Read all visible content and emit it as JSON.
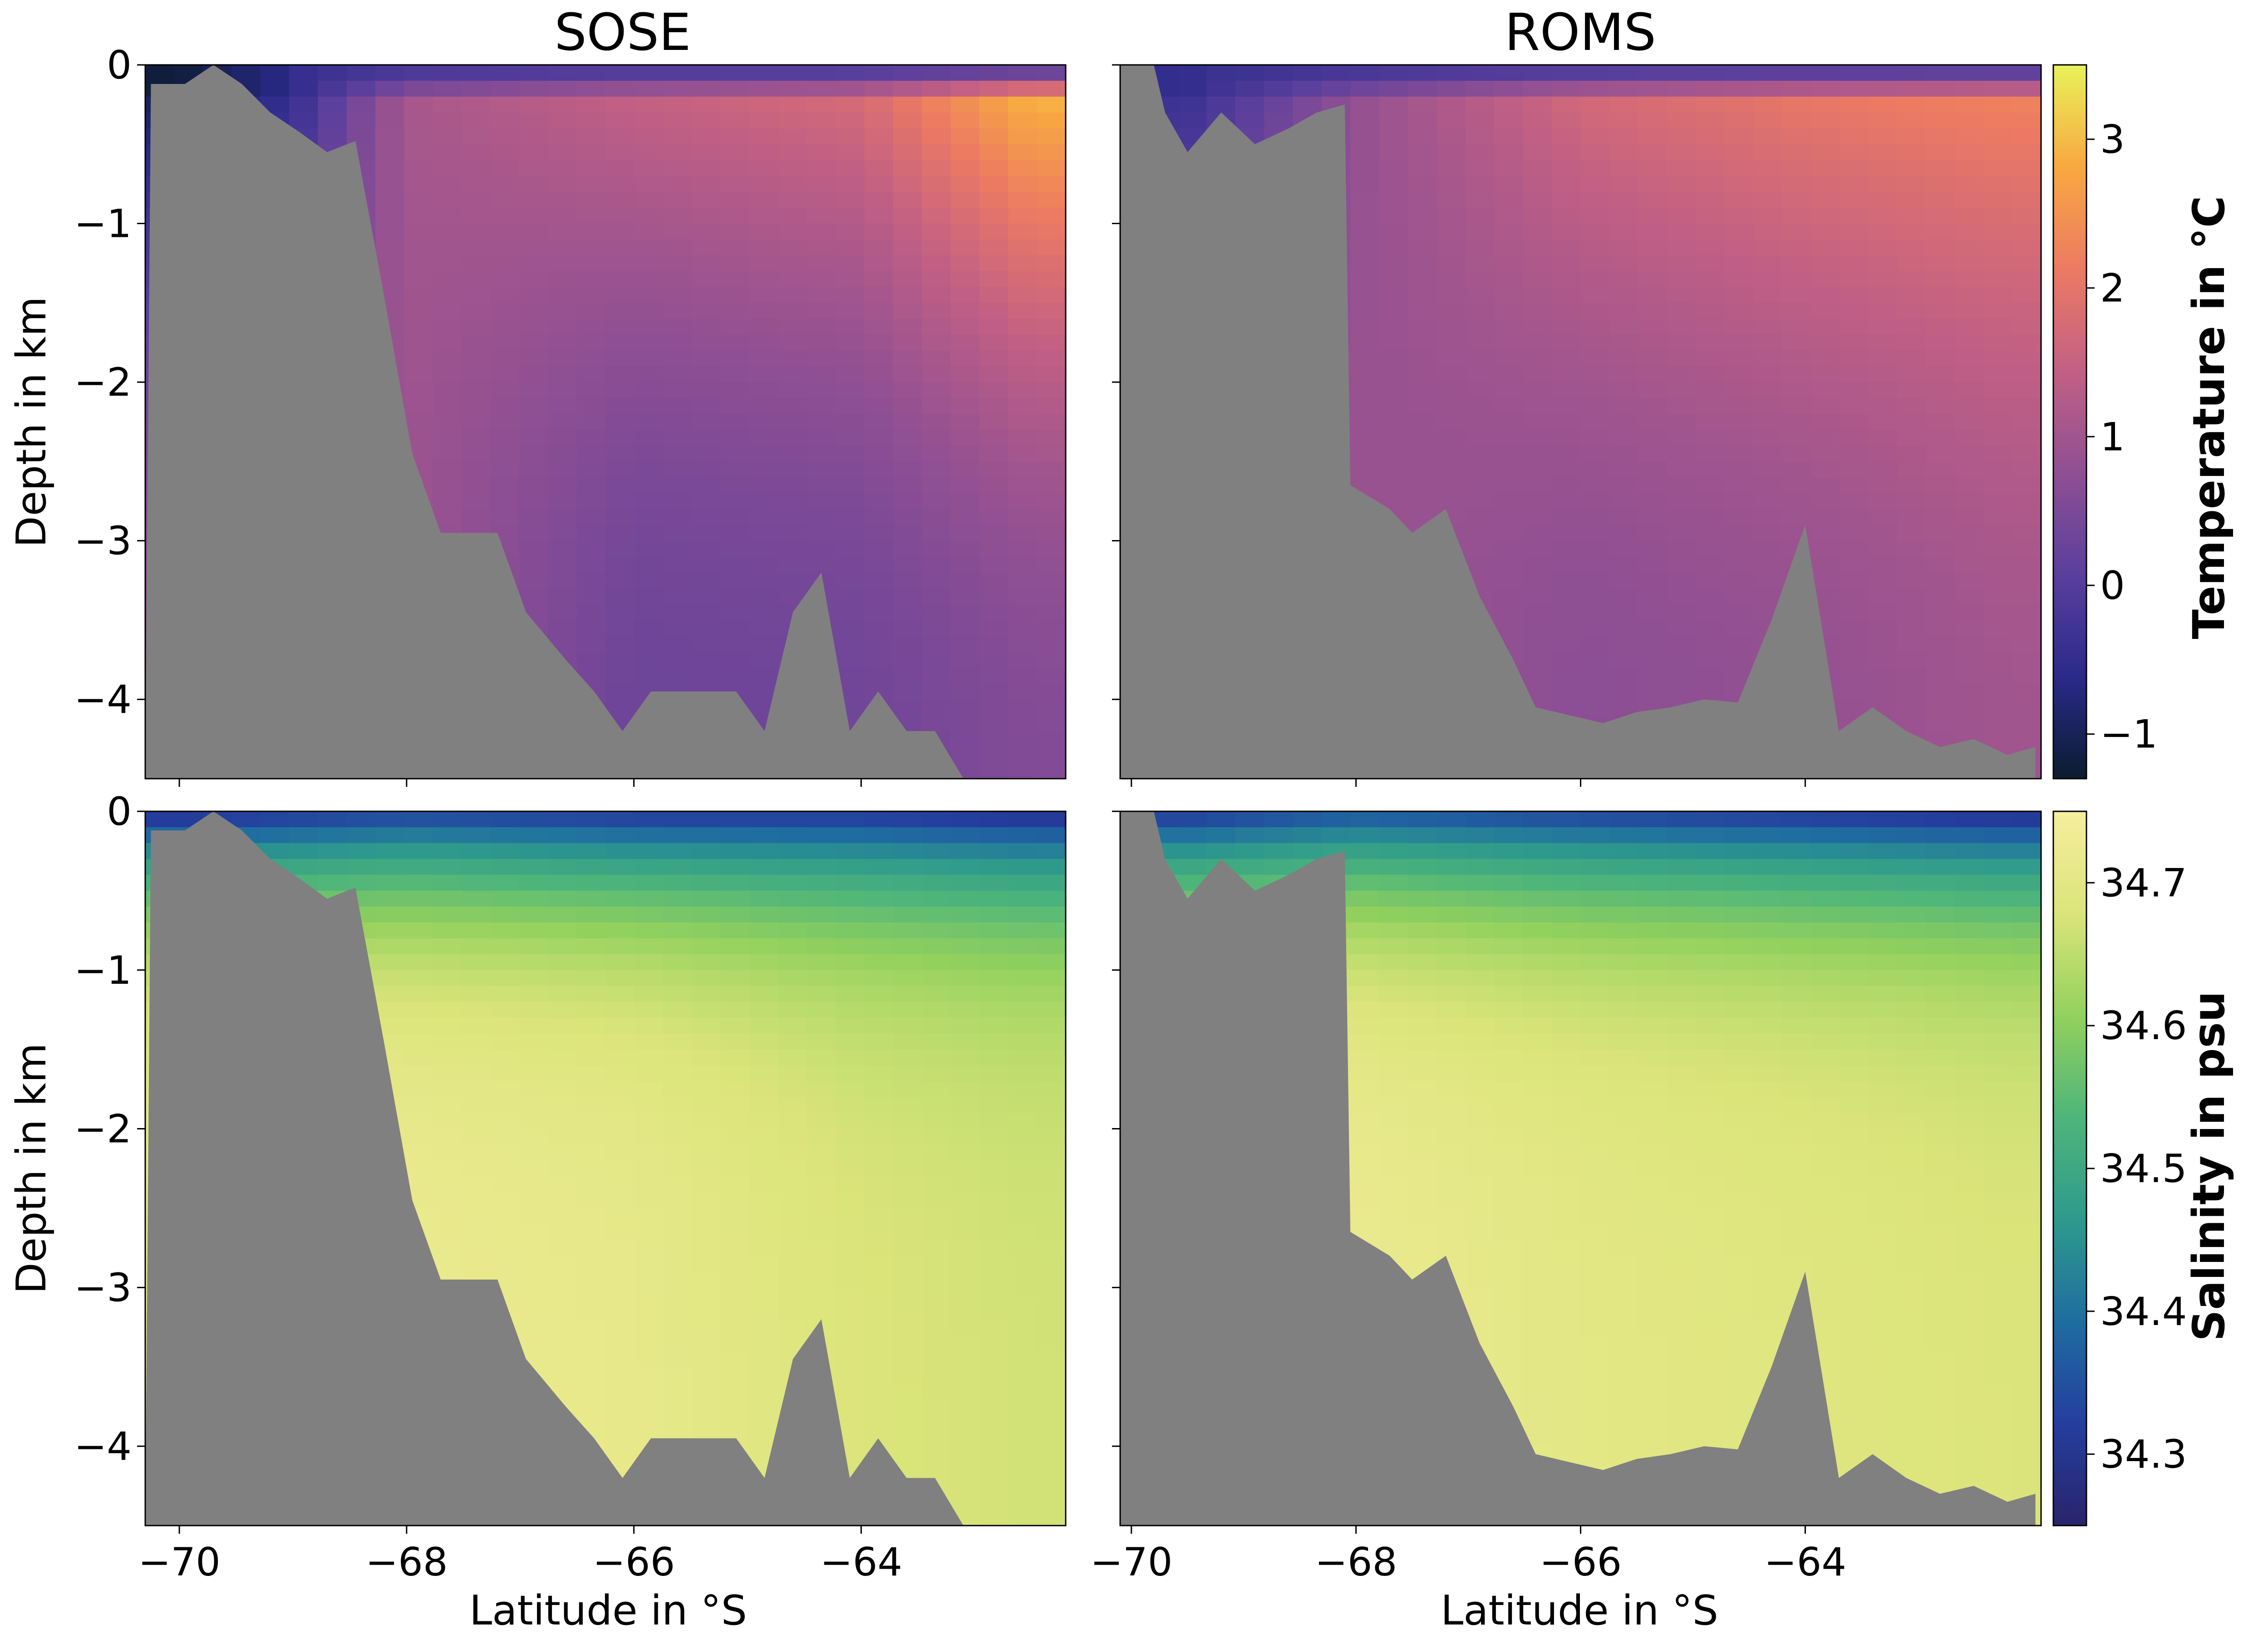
{
  "colors": {
    "land": "#808080",
    "temperature_colormap": [
      "#0b1c2f",
      "#2a2a8a",
      "#5a3f9d",
      "#8f4f93",
      "#c26084",
      "#ec7a63",
      "#f8a841",
      "#e8f25a"
    ],
    "salinity_colormap": [
      "#29246b",
      "#243e9e",
      "#1f6da0",
      "#2e9a8c",
      "#4eb57a",
      "#93d15d",
      "#dbe47a",
      "#f6ee9e"
    ]
  },
  "chart_data": [
    {
      "type": "heatmap",
      "panel": "top-left",
      "title": "SOSE",
      "xlabel": "",
      "ylabel": "Depth in km",
      "variable": "Temperature in °C",
      "xlim": [
        -70.3,
        -62.2
      ],
      "ylim": [
        -4.5,
        0
      ],
      "yticks": [
        0,
        -1,
        -2,
        -3,
        -4
      ],
      "ytick_labels": [
        "0",
        "−1",
        "−2",
        "−3",
        "−4"
      ],
      "bottom_depth_km": [
        [
          -70.25,
          -0.12
        ],
        [
          -69.95,
          -0.12
        ],
        [
          -69.7,
          0
        ],
        [
          -69.45,
          -0.12
        ],
        [
          -69.2,
          -0.3
        ],
        [
          -68.95,
          -0.42
        ],
        [
          -68.7,
          -0.55
        ],
        [
          -68.45,
          -0.48
        ],
        [
          -68.2,
          -1.45
        ],
        [
          -67.95,
          -2.45
        ],
        [
          -67.7,
          -2.95
        ],
        [
          -67.2,
          -2.95
        ],
        [
          -66.95,
          -3.45
        ],
        [
          -66.6,
          -3.75
        ],
        [
          -66.35,
          -3.95
        ],
        [
          -66.1,
          -4.2
        ],
        [
          -65.85,
          -3.95
        ],
        [
          -65.1,
          -3.95
        ],
        [
          -64.85,
          -4.2
        ],
        [
          -64.6,
          -3.45
        ],
        [
          -64.35,
          -3.2
        ],
        [
          -64.1,
          -4.2
        ],
        [
          -63.85,
          -3.95
        ],
        [
          -63.6,
          -4.2
        ],
        [
          -63.35,
          -4.2
        ],
        [
          -63.1,
          -4.5
        ],
        [
          -62.25,
          -4.5
        ]
      ],
      "surface_temperature_C": [
        [
          -70,
          -1.2
        ],
        [
          -69,
          -0.6
        ],
        [
          -68,
          1.1
        ],
        [
          -66,
          1.6
        ],
        [
          -64,
          1.9
        ],
        [
          -62.5,
          3.2
        ]
      ],
      "deep_temperature_C": [
        [
          -68,
          0.9
        ],
        [
          -66,
          0.3
        ],
        [
          -64,
          0.35
        ],
        [
          -62.5,
          0.6
        ]
      ]
    },
    {
      "type": "heatmap",
      "panel": "top-right",
      "title": "ROMS",
      "xlabel": "",
      "ylabel": "",
      "variable": "Temperature in °C",
      "xlim": [
        -70.1,
        -61.9
      ],
      "ylim": [
        -4.5,
        0
      ],
      "bottom_depth_km": [
        [
          -70.1,
          0
        ],
        [
          -69.8,
          0
        ],
        [
          -69.7,
          -0.3
        ],
        [
          -69.5,
          -0.55
        ],
        [
          -69.2,
          -0.3
        ],
        [
          -68.9,
          -0.5
        ],
        [
          -68.6,
          -0.4
        ],
        [
          -68.35,
          -0.3
        ],
        [
          -68.1,
          -0.25
        ],
        [
          -68.05,
          -2.65
        ],
        [
          -67.7,
          -2.8
        ],
        [
          -67.5,
          -2.95
        ],
        [
          -67.2,
          -2.8
        ],
        [
          -66.9,
          -3.35
        ],
        [
          -66.6,
          -3.75
        ],
        [
          -66.4,
          -4.05
        ],
        [
          -66.1,
          -4.1
        ],
        [
          -65.8,
          -4.15
        ],
        [
          -65.5,
          -4.08
        ],
        [
          -65.2,
          -4.05
        ],
        [
          -64.9,
          -4.0
        ],
        [
          -64.6,
          -4.02
        ],
        [
          -64.3,
          -3.5
        ],
        [
          -64.0,
          -2.9
        ],
        [
          -63.7,
          -4.2
        ],
        [
          -63.4,
          -4.05
        ],
        [
          -63.1,
          -4.2
        ],
        [
          -62.8,
          -4.3
        ],
        [
          -62.5,
          -4.25
        ],
        [
          -62.2,
          -4.35
        ],
        [
          -61.95,
          -4.3
        ]
      ],
      "surface_temperature_C": [
        [
          -69.5,
          -0.5
        ],
        [
          -68,
          0.8
        ],
        [
          -66,
          1.8
        ],
        [
          -64,
          2.2
        ],
        [
          -62.2,
          2.4
        ]
      ],
      "deep_temperature_C": [
        [
          -68,
          0.9
        ],
        [
          -66,
          0.7
        ],
        [
          -64,
          0.8
        ],
        [
          -62.2,
          1.0
        ]
      ]
    },
    {
      "type": "heatmap",
      "panel": "bottom-left",
      "title": "",
      "xlabel": "Latitude in °S",
      "ylabel": "Depth in km",
      "variable": "Salinity in psu",
      "xlim": [
        -70.3,
        -62.2
      ],
      "ylim": [
        -4.5,
        0
      ],
      "xticks": [
        -70,
        -68,
        -66,
        -64
      ],
      "xtick_labels": [
        "−70",
        "−68",
        "−66",
        "−64"
      ],
      "yticks": [
        0,
        -1,
        -2,
        -3,
        -4
      ],
      "ytick_labels": [
        "0",
        "−1",
        "−2",
        "−3",
        "−4"
      ],
      "surface_salinity_psu": [
        [
          -70,
          34.28
        ],
        [
          -68,
          34.32
        ],
        [
          -66,
          34.3
        ],
        [
          -64,
          34.3
        ],
        [
          -62.5,
          34.28
        ]
      ],
      "deep_salinity_psu": [
        [
          -68,
          34.72
        ],
        [
          -66,
          34.71
        ],
        [
          -64,
          34.68
        ],
        [
          -62.5,
          34.67
        ]
      ]
    },
    {
      "type": "heatmap",
      "panel": "bottom-right",
      "title": "",
      "xlabel": "Latitude in °S",
      "ylabel": "",
      "variable": "Salinity in psu",
      "xlim": [
        -70.1,
        -61.9
      ],
      "ylim": [
        -4.5,
        0
      ],
      "xticks": [
        -70,
        -68,
        -66,
        -64
      ],
      "xtick_labels": [
        "−70",
        "−68",
        "−66",
        "−64"
      ],
      "surface_salinity_psu": [
        [
          -69.5,
          34.3
        ],
        [
          -68,
          34.35
        ],
        [
          -66,
          34.32
        ],
        [
          -64,
          34.3
        ],
        [
          -62.2,
          34.28
        ]
      ],
      "deep_salinity_psu": [
        [
          -68,
          34.72
        ],
        [
          -66,
          34.7
        ],
        [
          -64,
          34.69
        ],
        [
          -62.2,
          34.68
        ]
      ]
    }
  ],
  "colorbars": [
    {
      "label": "Temperature in °C",
      "range": [
        -1.3,
        3.5
      ],
      "ticks": [
        -1,
        0,
        1,
        2,
        3
      ],
      "tick_labels": [
        "−1",
        "0",
        "1",
        "2",
        "3"
      ]
    },
    {
      "label": "Salinity in psu",
      "range": [
        34.25,
        34.75
      ],
      "ticks": [
        34.3,
        34.4,
        34.5,
        34.6,
        34.7
      ],
      "tick_labels": [
        "34.3",
        "34.4",
        "34.5",
        "34.6",
        "34.7"
      ]
    }
  ]
}
